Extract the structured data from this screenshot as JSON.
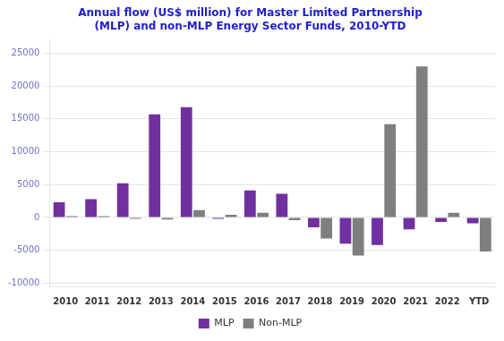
{
  "chart_data": {
    "type": "bar",
    "title": "Annual flow (US$ million) for Master Limited Partnership\n(MLP) and non-MLP Energy Sector Funds, 2010-YTD",
    "categories": [
      "2010",
      "2011",
      "2012",
      "2013",
      "2014",
      "2015",
      "2016",
      "2017",
      "2018",
      "2019",
      "2020",
      "2021",
      "2022",
      "YTD"
    ],
    "series": [
      {
        "name": "MLP",
        "color": "#7030a0",
        "values": [
          2300,
          2800,
          5200,
          15700,
          16800,
          -200,
          4100,
          3600,
          -1500,
          -4000,
          -4200,
          -1800,
          -700,
          -900
        ]
      },
      {
        "name": "Non-MLP",
        "color": "#7f7f7f",
        "values": [
          200,
          200,
          -200,
          -300,
          1100,
          400,
          700,
          -400,
          -3200,
          -5800,
          14200,
          23000,
          700,
          -5200
        ]
      }
    ],
    "ylim": [
      -10500,
      27000
    ],
    "yticks": [
      -10000,
      -5000,
      0,
      5000,
      10000,
      15000,
      20000,
      25000
    ],
    "grid": true,
    "legend": "bottom"
  }
}
